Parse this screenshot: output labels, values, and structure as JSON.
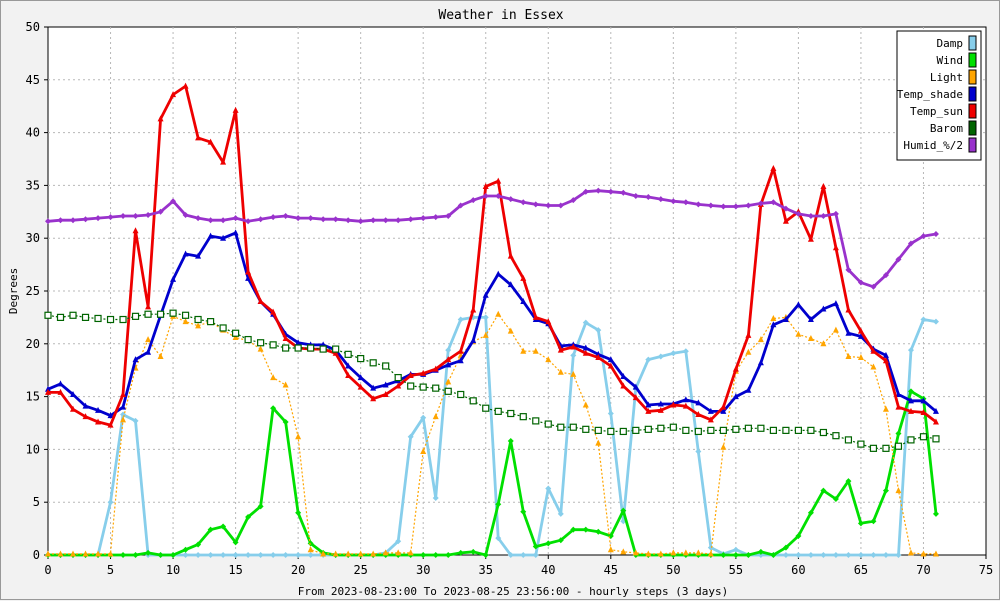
{
  "chart_data": {
    "type": "line",
    "title": "Weather in Essex",
    "xlabel": "From 2023-08-23:00 To 2023-08-25 23:56:00 - hourly steps (3 days)",
    "ylabel": "Degrees",
    "xlim": [
      0,
      75
    ],
    "ylim": [
      0,
      50
    ],
    "xticks": [
      0,
      5,
      10,
      15,
      20,
      25,
      30,
      35,
      40,
      45,
      50,
      55,
      60,
      65,
      70,
      75
    ],
    "yticks": [
      0,
      5,
      10,
      15,
      20,
      25,
      30,
      35,
      40,
      45,
      50
    ],
    "grid": true,
    "legend_position": "top-right",
    "series": [
      {
        "name": "Damp",
        "color": "#87ceeb",
        "marker": "diamond",
        "dash": false,
        "values": [
          0,
          0,
          0,
          0,
          0,
          5,
          13.3,
          12.7,
          0,
          0,
          0,
          0,
          0,
          0,
          0,
          0,
          0,
          0,
          0,
          0,
          0,
          0,
          0,
          0,
          0,
          0,
          0,
          0.2,
          1.3,
          11.2,
          13,
          5.4,
          19.4,
          22.3,
          22.5,
          22.5,
          1.6,
          0,
          0,
          0,
          6.3,
          3.9,
          18.9,
          22,
          21.3,
          13.4,
          3.2,
          15.8,
          18.5,
          18.8,
          19.1,
          19.3,
          9.8,
          0.7,
          0.1,
          0.5,
          0,
          0,
          0,
          0,
          0,
          0,
          0,
          0,
          0,
          0,
          0,
          0,
          0,
          19.4,
          22.3,
          22.1
        ]
      },
      {
        "name": "Wind",
        "color": "#00e000",
        "marker": "diamond",
        "dash": false,
        "values": [
          0,
          0,
          0,
          0,
          0,
          0,
          0,
          0,
          0.2,
          0,
          0,
          0.5,
          1,
          2.4,
          2.7,
          1.2,
          3.6,
          4.6,
          13.9,
          12.6,
          4,
          1.1,
          0.2,
          0,
          0,
          0,
          0,
          0,
          0,
          0,
          0,
          0,
          0,
          0.2,
          0.3,
          0,
          4.8,
          10.8,
          4.1,
          0.8,
          1.1,
          1.4,
          2.4,
          2.4,
          2.2,
          1.8,
          4.2,
          0,
          0,
          0,
          0,
          0,
          0,
          0,
          0,
          0,
          0,
          0.3,
          0,
          0.7,
          1.8,
          4,
          6.1,
          5.3,
          7,
          3,
          3.2,
          6.1,
          11.5,
          15.5,
          14.8,
          3.9
        ]
      },
      {
        "name": "Light",
        "color": "#ffa500",
        "marker": "triangle",
        "dash": true,
        "values": [
          0.1,
          0.1,
          0.1,
          0.1,
          0.1,
          0.1,
          12.8,
          17.7,
          20.4,
          18.8,
          22.6,
          22.1,
          21.7,
          22.1,
          21.3,
          20.6,
          20.3,
          19.5,
          16.8,
          16.1,
          11.2,
          0.5,
          0.1,
          0.1,
          0.1,
          0.1,
          0.1,
          0.2,
          0.2,
          0.2,
          9.8,
          13.1,
          16.4,
          18.9,
          20.2,
          20.8,
          22.8,
          21.2,
          19.3,
          19.3,
          18.5,
          17.3,
          17.1,
          14.2,
          10.6,
          0.5,
          0.3,
          0.2,
          0.1,
          0.1,
          0.2,
          0.2,
          0.2,
          0.1,
          10.2,
          17.4,
          19.2,
          20.4,
          22.4,
          22.5,
          20.9,
          20.5,
          20,
          21.3,
          18.8,
          18.7,
          17.8,
          13.8,
          6.1,
          0.2,
          0.1,
          0.1
        ]
      },
      {
        "name": "Temp_shade",
        "color": "#0000cd",
        "marker": "triangle",
        "dash": false,
        "values": [
          15.7,
          16.2,
          15.2,
          14.1,
          13.7,
          13.2,
          14,
          18.5,
          19.2,
          22.7,
          26.1,
          28.5,
          28.3,
          30.2,
          30,
          30.5,
          26.2,
          24,
          22.8,
          20.9,
          20.1,
          19.9,
          19.9,
          19.4,
          17.9,
          16.8,
          15.8,
          16.1,
          16.5,
          17.1,
          17.1,
          17.5,
          18,
          18.4,
          20.3,
          24.6,
          26.6,
          25.6,
          24,
          22.3,
          21.9,
          19.8,
          19.9,
          19.6,
          19,
          18.5,
          16.9,
          15.9,
          14.2,
          14.3,
          14.3,
          14.7,
          14.4,
          13.6,
          13.6,
          15,
          15.6,
          18.2,
          21.8,
          22.3,
          23.7,
          22.3,
          23.3,
          23.8,
          21,
          20.7,
          19.5,
          18.9,
          15.2,
          14.6,
          14.6,
          13.6
        ]
      },
      {
        "name": "Temp_sun",
        "color": "#ee0000",
        "marker": "triangle",
        "dash": false,
        "values": [
          15.4,
          15.4,
          13.8,
          13.1,
          12.6,
          12.3,
          15.2,
          30.7,
          23.5,
          41.3,
          43.6,
          44.4,
          39.5,
          39.1,
          37.2,
          42.1,
          26.8,
          24,
          23,
          20.5,
          19.6,
          19.5,
          19.5,
          19.1,
          17,
          15.9,
          14.8,
          15.2,
          16,
          17,
          17.2,
          17.6,
          18.5,
          19.3,
          23.2,
          34.9,
          35.4,
          28.3,
          26.2,
          22.5,
          22.1,
          19.4,
          19.7,
          19.1,
          18.7,
          17.9,
          16,
          14.9,
          13.6,
          13.7,
          14.2,
          14.1,
          13.3,
          12.8,
          14,
          17.6,
          20.8,
          33.2,
          36.6,
          31.6,
          32.5,
          29.9,
          34.9,
          29.1,
          23.2,
          21.2,
          19.3,
          18.4,
          14,
          13.6,
          13.5,
          12.6
        ]
      },
      {
        "name": "Barom",
        "color": "#006400",
        "marker": "square",
        "dash": true,
        "values": [
          22.7,
          22.5,
          22.7,
          22.5,
          22.4,
          22.3,
          22.3,
          22.6,
          22.8,
          22.8,
          22.9,
          22.7,
          22.3,
          22.1,
          21.5,
          21,
          20.4,
          20.1,
          19.9,
          19.6,
          19.6,
          19.6,
          19.5,
          19.5,
          19,
          18.6,
          18.2,
          17.9,
          16.8,
          16,
          15.9,
          15.8,
          15.5,
          15.2,
          14.6,
          13.9,
          13.6,
          13.4,
          13.1,
          12.7,
          12.4,
          12.1,
          12.1,
          11.9,
          11.8,
          11.7,
          11.7,
          11.8,
          11.9,
          12,
          12.1,
          11.8,
          11.7,
          11.8,
          11.8,
          11.9,
          12,
          12,
          11.8,
          11.8,
          11.8,
          11.8,
          11.6,
          11.3,
          10.9,
          10.5,
          10.1,
          10.1,
          10.3,
          10.9,
          11.2,
          11
        ]
      },
      {
        "name": "Humid_%/2",
        "color": "#9932cc",
        "marker": "diamond",
        "dash": false,
        "values": [
          31.6,
          31.7,
          31.7,
          31.8,
          31.9,
          32,
          32.1,
          32.1,
          32.2,
          32.5,
          33.5,
          32.2,
          31.9,
          31.7,
          31.7,
          31.9,
          31.6,
          31.8,
          32,
          32.1,
          31.9,
          31.9,
          31.8,
          31.8,
          31.7,
          31.6,
          31.7,
          31.7,
          31.7,
          31.8,
          31.9,
          32,
          32.1,
          33.1,
          33.6,
          34,
          34,
          33.7,
          33.4,
          33.2,
          33.1,
          33.1,
          33.6,
          34.4,
          34.5,
          34.4,
          34.3,
          34,
          33.9,
          33.7,
          33.5,
          33.4,
          33.2,
          33.1,
          33,
          33,
          33.1,
          33.3,
          33.4,
          32.8,
          32.3,
          32.1,
          32.1,
          32.3,
          27,
          25.8,
          25.4,
          26.5,
          28,
          29.5,
          30.2,
          30.4
        ]
      }
    ]
  }
}
